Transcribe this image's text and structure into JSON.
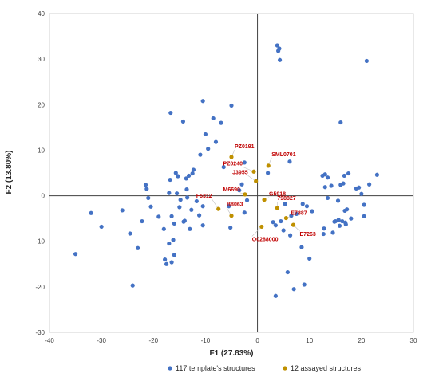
{
  "chart_data": {
    "type": "scatter",
    "xlabel": "F1 (27.83%)",
    "ylabel": "F2 (13.80%)",
    "xlim": [
      -40,
      30
    ],
    "ylim": [
      -30,
      40
    ],
    "xticks": [
      "-40",
      "-30",
      "-20",
      "-10",
      "0",
      "10",
      "20",
      "30"
    ],
    "yticks": [
      "-30",
      "-20",
      "-10",
      "0",
      "10",
      "20",
      "30",
      "40"
    ],
    "grid": false,
    "legend_position": "bottom",
    "series": [
      {
        "name": "117 template's structures",
        "color": "#4472c4",
        "points": [
          [
            -35,
            -12.8
          ],
          [
            -32,
            -3.8
          ],
          [
            -30,
            -6.8
          ],
          [
            -26,
            -3.2
          ],
          [
            -24.5,
            -8.3
          ],
          [
            -24,
            -19.7
          ],
          [
            -21.5,
            2.4
          ],
          [
            -21.3,
            1.5
          ],
          [
            -21,
            -0.5
          ],
          [
            -20.5,
            -2.4
          ],
          [
            -19,
            -4.6
          ],
          [
            -17.5,
            -15
          ],
          [
            -17,
            -10.5
          ],
          [
            -17,
            0.6
          ],
          [
            -16.8,
            3.5
          ],
          [
            -16.5,
            -4.5
          ],
          [
            -16.2,
            -9.7
          ],
          [
            -16,
            -13
          ],
          [
            -16,
            -6.1
          ],
          [
            -15.7,
            5
          ],
          [
            -15.5,
            0.5
          ],
          [
            -15.3,
            4.3
          ],
          [
            -15,
            -2.5
          ],
          [
            -14.8,
            -0.9
          ],
          [
            -14.2,
            -5.7
          ],
          [
            -14,
            -5.5
          ],
          [
            -13.7,
            3.8
          ],
          [
            -13.6,
            1.4
          ],
          [
            -13,
            -7.3
          ],
          [
            -12.7,
            -3.1
          ],
          [
            -12.5,
            4.9
          ],
          [
            -12.3,
            5.7
          ],
          [
            -13.5,
            -0.4
          ],
          [
            -13.2,
            4.4
          ],
          [
            -11.7,
            -1.2
          ],
          [
            -11.2,
            -4.3
          ],
          [
            -11,
            9
          ],
          [
            -10.5,
            -6.5
          ],
          [
            -10.5,
            -2.3
          ],
          [
            -10,
            13.5
          ],
          [
            -9.5,
            10.3
          ],
          [
            -8.5,
            17
          ],
          [
            -8,
            11.8
          ],
          [
            -7,
            16
          ],
          [
            -6.5,
            6.3
          ],
          [
            -5.5,
            -2.3
          ],
          [
            -5.2,
            -7
          ],
          [
            -5,
            19.8
          ],
          [
            -3.5,
            1.2
          ],
          [
            -3,
            2.5
          ],
          [
            -2.5,
            -3.7
          ],
          [
            -2.5,
            7.3
          ],
          [
            -2,
            -1
          ],
          [
            -16.7,
            18.2
          ],
          [
            -14.3,
            16.3
          ],
          [
            -10.5,
            20.8
          ],
          [
            2,
            5
          ],
          [
            3,
            -5.8
          ],
          [
            3.5,
            -22
          ],
          [
            3.5,
            -6.5
          ],
          [
            3.8,
            33
          ],
          [
            4.2,
            32.3
          ],
          [
            4,
            31.8
          ],
          [
            4.3,
            29.8
          ],
          [
            4.5,
            -5.6
          ],
          [
            5,
            -7.6
          ],
          [
            5.3,
            -1.8
          ],
          [
            5.8,
            -16.8
          ],
          [
            6.2,
            7.5
          ],
          [
            6.3,
            -8.7
          ],
          [
            6.5,
            -4.4
          ],
          [
            7,
            -20.5
          ],
          [
            7.5,
            -4
          ],
          [
            8.5,
            -11.3
          ],
          [
            8.7,
            -1.8
          ],
          [
            9,
            -19.5
          ],
          [
            9.5,
            -2.3
          ],
          [
            10,
            -13.8
          ],
          [
            10.5,
            -3.4
          ],
          [
            12.5,
            4.4
          ],
          [
            12.7,
            -8.4
          ],
          [
            12.8,
            -7.2
          ],
          [
            13,
            4.7
          ],
          [
            13.5,
            4
          ],
          [
            13,
            1.9
          ],
          [
            13.5,
            -0.5
          ],
          [
            14.2,
            2.2
          ],
          [
            14.5,
            -8.1
          ],
          [
            14.8,
            -5.7
          ],
          [
            15,
            -5.6
          ],
          [
            15.5,
            -1.1
          ],
          [
            15.6,
            -5.3
          ],
          [
            15.8,
            -6.6
          ],
          [
            16,
            16.1
          ],
          [
            16,
            2.4
          ],
          [
            16.3,
            -5.6
          ],
          [
            16.5,
            2.7
          ],
          [
            16.7,
            4.4
          ],
          [
            16.8,
            -3.3
          ],
          [
            16.9,
            -5.9
          ],
          [
            17,
            -6.3
          ],
          [
            17.2,
            -3
          ],
          [
            17.5,
            4.9
          ],
          [
            18,
            -5
          ],
          [
            19,
            1.6
          ],
          [
            19.5,
            1.8
          ],
          [
            20,
            0.4
          ],
          [
            20.5,
            -2
          ],
          [
            20.5,
            -4.5
          ],
          [
            21,
            29.6
          ],
          [
            21.5,
            2.5
          ],
          [
            23,
            4.6
          ],
          [
            -18,
            -7.3
          ],
          [
            -17.8,
            -14
          ],
          [
            -16.5,
            -14.6
          ],
          [
            -22.2,
            -5.6
          ],
          [
            -23,
            -11.5
          ]
        ]
      },
      {
        "name": "12 assayed structures",
        "color": "#bf9000",
        "points": [
          {
            "label": "PZ0191",
            "x": -5,
            "y": 8.5
          },
          {
            "label": "PZ0240",
            "x": -0.7,
            "y": 5.3
          },
          {
            "label": "J3955",
            "x": -0.3,
            "y": 3.2
          },
          {
            "label": "SML0701",
            "x": 2.1,
            "y": 6.6
          },
          {
            "label": "G5918",
            "x": 1.3,
            "y": -0.9
          },
          {
            "label": "M6690",
            "x": -2.4,
            "y": 0.3
          },
          {
            "label": "F5312",
            "x": -7.5,
            "y": -2.9
          },
          {
            "label": "B8063",
            "x": -5,
            "y": -4.4
          },
          {
            "label": "798827",
            "x": 3.8,
            "y": -2.7
          },
          {
            "label": "E7887",
            "x": 5.5,
            "y": -4.9
          },
          {
            "label": "E7263",
            "x": 6.9,
            "y": -6.4
          },
          {
            "label": "O0288000",
            "x": 0.8,
            "y": -6.8
          }
        ]
      }
    ]
  }
}
